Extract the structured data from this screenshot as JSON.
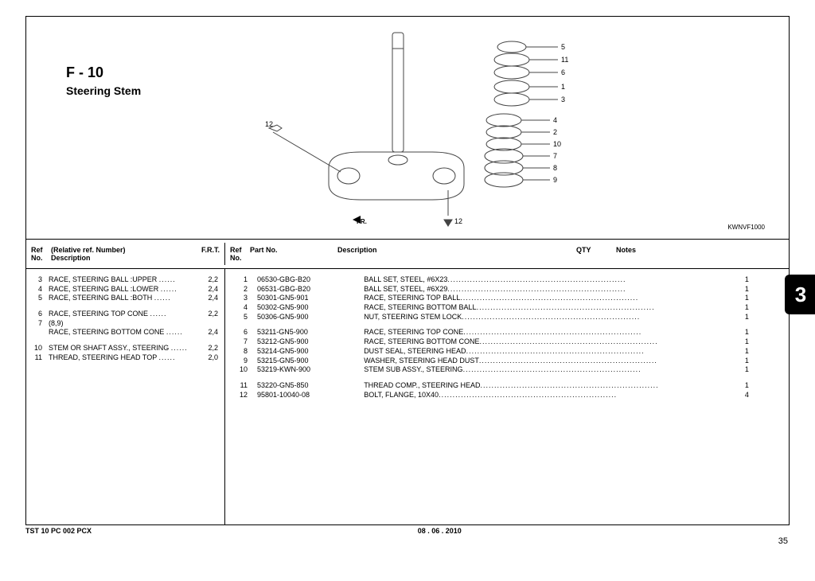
{
  "title": {
    "main": "F - 10",
    "sub": "Steering Stem"
  },
  "diagram": {
    "code": "KWNVF1000",
    "fr_label": "FR.",
    "callouts": [
      "5",
      "11",
      "6",
      "1",
      "3",
      "4",
      "2",
      "10",
      "7",
      "8",
      "9",
      "12",
      "12"
    ]
  },
  "headers": {
    "left": {
      "ref": "Ref\nNo.",
      "desc": "(Relative ref. Number)\nDescription",
      "frt": "F.R.T."
    },
    "right": {
      "ref": "Ref\nNo.",
      "part": "Part No.",
      "desc": "Description",
      "qty": "QTY",
      "notes": "Notes"
    }
  },
  "relative_refs": [
    {
      "no": "3",
      "desc": "RACE, STEERING BALL :UPPER",
      "frt": "2,2"
    },
    {
      "no": "4",
      "desc": "RACE, STEERING BALL :LOWER",
      "frt": "2,4"
    },
    {
      "no": "5",
      "desc": "RACE, STEERING BALL :BOTH",
      "frt": "2,4"
    },
    {
      "spacer": true
    },
    {
      "no": "6",
      "desc": "RACE, STEERING TOP CONE",
      "frt": "2,2"
    },
    {
      "no": "7",
      "desc": "(8,9)",
      "frt": ""
    },
    {
      "no": "",
      "desc": "RACE, STEERING BOTTOM CONE",
      "frt": "2,4"
    },
    {
      "spacer": true
    },
    {
      "no": "10",
      "desc": "STEM OR SHAFT ASSY., STEERING",
      "frt": "2,2"
    },
    {
      "no": "11",
      "desc": "THREAD, STEERING HEAD TOP",
      "frt": "2,0"
    }
  ],
  "parts": [
    {
      "no": "1",
      "part": "06530-GBG-B20",
      "desc": "BALL SET, STEEL, #6X23",
      "qty": "1"
    },
    {
      "no": "2",
      "part": "06531-GBG-B20",
      "desc": "BALL SET, STEEL, #6X29",
      "qty": "1"
    },
    {
      "no": "3",
      "part": "50301-GN5-901",
      "desc": "RACE, STEERING TOP BALL",
      "qty": "1"
    },
    {
      "no": "4",
      "part": "50302-GN5-900",
      "desc": "RACE, STEERING BOTTOM BALL",
      "qty": "1"
    },
    {
      "no": "5",
      "part": "50306-GN5-900",
      "desc": "NUT, STEERING STEM LOCK",
      "qty": "1"
    },
    {
      "spacer": true
    },
    {
      "no": "6",
      "part": "53211-GN5-900",
      "desc": "RACE, STEERING TOP CONE",
      "qty": "1"
    },
    {
      "no": "7",
      "part": "53212-GN5-900",
      "desc": "RACE, STEERING BOTTOM CONE",
      "qty": "1"
    },
    {
      "no": "8",
      "part": "53214-GN5-900",
      "desc": "DUST SEAL, STEERING HEAD",
      "qty": "1"
    },
    {
      "no": "9",
      "part": "53215-GN5-900",
      "desc": "WASHER, STEERING HEAD DUST",
      "qty": "1"
    },
    {
      "no": "10",
      "part": "53219-KWN-900",
      "desc": "STEM SUB ASSY., STEERING",
      "qty": "1"
    },
    {
      "spacer": true
    },
    {
      "no": "11",
      "part": "53220-GN5-850",
      "desc": "THREAD COMP., STEERING HEAD",
      "qty": "1"
    },
    {
      "no": "12",
      "part": "95801-10040-08",
      "desc": "BOLT, FLANGE, 10X40",
      "qty": "4"
    }
  ],
  "footer": {
    "left": "TST 10 PC 002 PCX",
    "center": "08 . 06 . 2010",
    "page_num": "35",
    "tab": "3"
  },
  "style": {
    "border_color": "#000000",
    "text_color": "#000000",
    "tab_bg": "#000000",
    "tab_fg": "#ffffff",
    "font_size_body": 9,
    "font_size_title": 18,
    "font_size_sub": 14
  }
}
